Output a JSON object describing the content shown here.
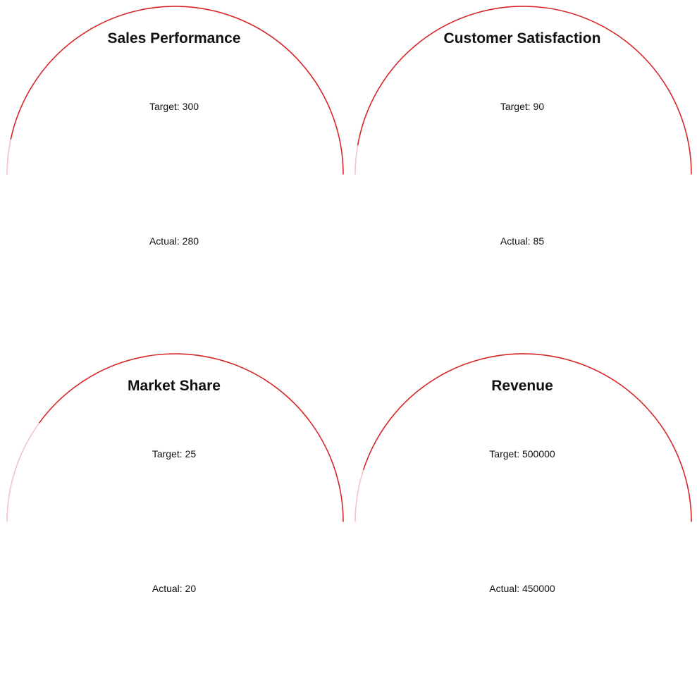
{
  "chart_data": [
    {
      "type": "gauge",
      "title": "Sales Performance",
      "target_label": "Target: 300",
      "actual_label": "Actual: 280",
      "target": 300,
      "actual": 280
    },
    {
      "type": "gauge",
      "title": "Customer Satisfaction",
      "target_label": "Target: 90",
      "actual_label": "Actual: 85",
      "target": 90,
      "actual": 85
    },
    {
      "type": "gauge",
      "title": "Market Share",
      "target_label": "Target: 25",
      "actual_label": "Actual: 20",
      "target": 25,
      "actual": 20
    },
    {
      "type": "gauge",
      "title": "Revenue",
      "target_label": "Target: 500000",
      "actual_label": "Actual: 450000",
      "target": 500000,
      "actual": 450000
    }
  ],
  "colors": {
    "actual_arc": "#d62728",
    "remaining_arc": "#f2c4c4",
    "text": "#111111"
  }
}
